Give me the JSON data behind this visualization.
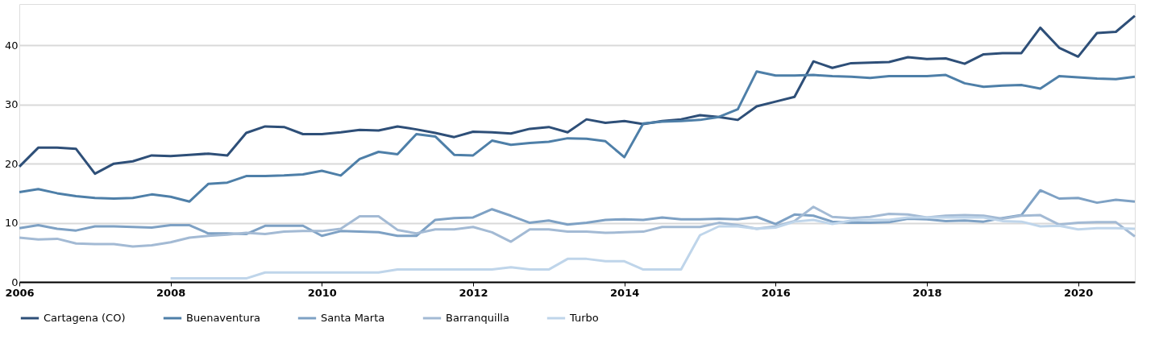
{
  "chart_data": {
    "type": "line",
    "x": [
      2006,
      2006.25,
      2006.5,
      2006.75,
      2007,
      2007.25,
      2007.5,
      2007.75,
      2008,
      2008.25,
      2008.5,
      2008.75,
      2009,
      2009.25,
      2009.5,
      2009.75,
      2010,
      2010.25,
      2010.5,
      2010.75,
      2011,
      2011.25,
      2011.5,
      2011.75,
      2012,
      2012.25,
      2012.5,
      2012.75,
      2013,
      2013.25,
      2013.5,
      2013.75,
      2014,
      2014.25,
      2014.5,
      2014.75,
      2015,
      2015.25,
      2015.5,
      2015.75,
      2016,
      2016.25,
      2016.5,
      2016.75,
      2017,
      2017.25,
      2017.5,
      2017.75,
      2018,
      2018.25,
      2018.5,
      2018.75,
      2019,
      2019.25,
      2019.5,
      2019.75,
      2020,
      2020.25,
      2020.5,
      2020.75
    ],
    "series": [
      {
        "name": "Cartagena (CO)",
        "color": "#2e4f78",
        "values": [
          19.5,
          22.7,
          22.7,
          22.5,
          18.3,
          20.0,
          20.4,
          21.4,
          21.3,
          21.5,
          21.7,
          21.4,
          25.2,
          26.3,
          26.2,
          25.0,
          25.0,
          25.3,
          25.7,
          25.6,
          26.3,
          25.8,
          25.2,
          24.5,
          25.4,
          25.3,
          25.1,
          25.9,
          26.2,
          25.3,
          27.5,
          26.9,
          27.2,
          26.7,
          27.2,
          27.5,
          28.2,
          27.9,
          27.4,
          29.7,
          30.5,
          31.3,
          37.3,
          36.2,
          37.0,
          37.1,
          37.2,
          38.0,
          37.7,
          37.8,
          36.9,
          38.5,
          38.7,
          38.7,
          43.0,
          39.6,
          38.1,
          42.1,
          42.3,
          45.0
        ]
      },
      {
        "name": "Buenaventura",
        "color": "#4e7fa8",
        "values": [
          15.2,
          15.7,
          15.0,
          14.5,
          14.2,
          14.1,
          14.2,
          14.8,
          14.4,
          13.6,
          16.6,
          16.8,
          17.9,
          17.9,
          18.0,
          18.2,
          18.8,
          18.0,
          20.8,
          22.0,
          21.6,
          25.0,
          24.6,
          21.5,
          21.4,
          23.9,
          23.2,
          23.5,
          23.7,
          24.3,
          24.2,
          23.8,
          21.1,
          26.8,
          27.1,
          27.2,
          27.4,
          27.9,
          29.2,
          35.6,
          34.9,
          34.9,
          35.0,
          34.8,
          34.7,
          34.5,
          34.8,
          34.8,
          34.8,
          35.0,
          33.6,
          33.0,
          33.2,
          33.3,
          32.7,
          34.8,
          34.6,
          34.4,
          34.3,
          34.7
        ]
      },
      {
        "name": "Santa Marta",
        "color": "#7ea1c4",
        "values": [
          9.1,
          9.6,
          9.0,
          8.7,
          9.4,
          9.4,
          9.3,
          9.2,
          9.6,
          9.6,
          8.2,
          8.2,
          8.1,
          9.5,
          9.5,
          9.5,
          7.8,
          8.6,
          8.5,
          8.4,
          7.8,
          7.8,
          10.5,
          10.8,
          10.9,
          12.3,
          11.2,
          10.0,
          10.4,
          9.7,
          10.0,
          10.5,
          10.6,
          10.5,
          10.9,
          10.6,
          10.6,
          10.7,
          10.6,
          11.0,
          9.8,
          11.4,
          11.2,
          10.2,
          10.0,
          10.0,
          10.1,
          10.7,
          10.6,
          10.3,
          10.4,
          10.2,
          10.8,
          11.3,
          15.5,
          14.1,
          14.2,
          13.4,
          13.9,
          13.6
        ]
      },
      {
        "name": "Barranquilla",
        "color": "#a3bad4",
        "values": [
          7.5,
          7.2,
          7.3,
          6.5,
          6.4,
          6.4,
          6.0,
          6.2,
          6.7,
          7.5,
          7.8,
          8.0,
          8.3,
          8.1,
          8.5,
          8.6,
          8.6,
          9.0,
          11.1,
          11.1,
          8.8,
          8.2,
          8.9,
          8.9,
          9.3,
          8.4,
          6.8,
          8.9,
          8.9,
          8.5,
          8.5,
          8.3,
          8.4,
          8.5,
          9.3,
          9.3,
          9.3,
          10.0,
          9.6,
          9.0,
          9.4,
          10.3,
          12.7,
          11.0,
          10.8,
          11.0,
          11.5,
          11.4,
          10.9,
          11.2,
          11.3,
          11.2,
          10.7,
          11.2,
          11.3,
          9.7,
          10.0,
          10.1,
          10.1,
          7.7
        ]
      },
      {
        "name": "Turbo",
        "color": "#bfd5ea",
        "values": [
          null,
          null,
          null,
          null,
          null,
          null,
          null,
          null,
          0.6,
          0.6,
          0.6,
          0.6,
          0.6,
          1.6,
          1.6,
          1.6,
          1.6,
          1.6,
          1.6,
          1.6,
          2.1,
          2.1,
          2.1,
          2.1,
          2.1,
          2.1,
          2.5,
          2.1,
          2.1,
          3.9,
          3.9,
          3.5,
          3.5,
          2.1,
          2.1,
          2.1,
          7.9,
          9.4,
          9.4,
          9.0,
          9.2,
          10.2,
          10.5,
          9.8,
          10.4,
          10.5,
          10.5,
          10.9,
          10.9,
          10.9,
          10.9,
          10.9,
          10.3,
          10.2,
          9.4,
          9.5,
          8.9,
          9.1,
          9.1,
          9.0
        ]
      }
    ],
    "xlim": [
      2006,
      2020.75
    ],
    "xticks": [
      2006,
      2008,
      2010,
      2012,
      2014,
      2016,
      2018,
      2020
    ],
    "ylim": [
      0,
      47
    ],
    "yticks": [
      0,
      10,
      20,
      30,
      40
    ],
    "grid": "y",
    "legend": "bottom",
    "marker": "none",
    "line_style": "solid"
  }
}
